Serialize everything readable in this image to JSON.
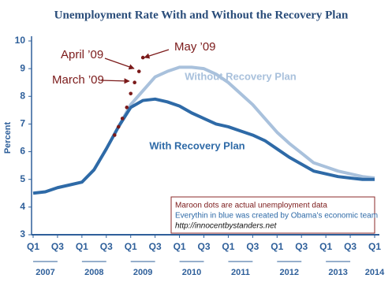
{
  "chart_data": {
    "type": "line",
    "title": "Unemployment Rate With and Without the Recovery Plan",
    "ylabel": "Percent",
    "xlim": [
      2007,
      2014
    ],
    "ylim": [
      3,
      10
    ],
    "yticks": [
      3,
      4,
      5,
      6,
      7,
      8,
      9,
      10
    ],
    "xticks": [
      {
        "value": 2007,
        "label": "Q1"
      },
      {
        "value": 2007.5,
        "label": "Q3"
      },
      {
        "value": 2008,
        "label": "Q1"
      },
      {
        "value": 2008.5,
        "label": "Q3"
      },
      {
        "value": 2009,
        "label": "Q1"
      },
      {
        "value": 2009.5,
        "label": "Q3"
      },
      {
        "value": 2010,
        "label": "Q1"
      },
      {
        "value": 2010.5,
        "label": "Q3"
      },
      {
        "value": 2011,
        "label": "Q1"
      },
      {
        "value": 2011.5,
        "label": "Q3"
      },
      {
        "value": 2012,
        "label": "Q1"
      },
      {
        "value": 2012.5,
        "label": "Q3"
      },
      {
        "value": 2013,
        "label": "Q1"
      },
      {
        "value": 2013.5,
        "label": "Q3"
      },
      {
        "value": 2014,
        "label": "Q1"
      }
    ],
    "year_labels": [
      {
        "value": 2007.25,
        "label": "2007"
      },
      {
        "value": 2008.25,
        "label": "2008"
      },
      {
        "value": 2009.25,
        "label": "2009"
      },
      {
        "value": 2010.25,
        "label": "2010"
      },
      {
        "value": 2011.25,
        "label": "2011"
      },
      {
        "value": 2012.25,
        "label": "2012"
      },
      {
        "value": 2013.25,
        "label": "2013"
      },
      {
        "value": 2014,
        "label": "2014"
      }
    ],
    "x": [
      2007,
      2007.25,
      2007.5,
      2007.75,
      2008,
      2008.25,
      2008.5,
      2008.75,
      2009,
      2009.25,
      2009.5,
      2009.75,
      2010,
      2010.25,
      2010.5,
      2010.75,
      2011,
      2011.25,
      2011.5,
      2011.75,
      2012,
      2012.25,
      2012.5,
      2012.75,
      2013,
      2013.25,
      2013.5,
      2013.75,
      2014
    ],
    "series": [
      {
        "name": "With Recovery Plan",
        "color": "#2e6aa7",
        "values": [
          4.5,
          4.55,
          4.7,
          4.8,
          4.9,
          5.35,
          6.1,
          6.9,
          7.6,
          7.85,
          7.9,
          7.8,
          7.65,
          7.4,
          7.2,
          7.0,
          6.9,
          6.75,
          6.6,
          6.4,
          6.1,
          5.8,
          5.55,
          5.3,
          5.2,
          5.1,
          5.05,
          5.0,
          5.0
        ]
      },
      {
        "name": "Without Recovery Plan",
        "color": "#a9c1dc",
        "values": [
          null,
          null,
          null,
          null,
          null,
          null,
          null,
          6.9,
          7.7,
          8.2,
          8.7,
          8.9,
          9.05,
          9.05,
          9.0,
          8.8,
          8.5,
          8.1,
          7.7,
          7.2,
          6.7,
          6.3,
          5.95,
          5.6,
          5.45,
          5.3,
          5.2,
          5.1,
          5.05
        ]
      }
    ],
    "actual": {
      "color": "#7b1a1a",
      "x": [
        2008.67,
        2008.75,
        2008.83,
        2008.92,
        2009.0,
        2009.08,
        2009.17,
        2009.25
      ],
      "values": [
        6.6,
        6.9,
        7.2,
        7.6,
        8.1,
        8.5,
        8.9,
        9.4
      ]
    },
    "annotations": [
      "May ’09",
      "April ’09",
      "March ’09"
    ],
    "note": [
      "Maroon dots are actual unemployment data",
      "Everythin in blue was created by Obama's economic team",
      "http://innocentbystanders.net"
    ]
  }
}
